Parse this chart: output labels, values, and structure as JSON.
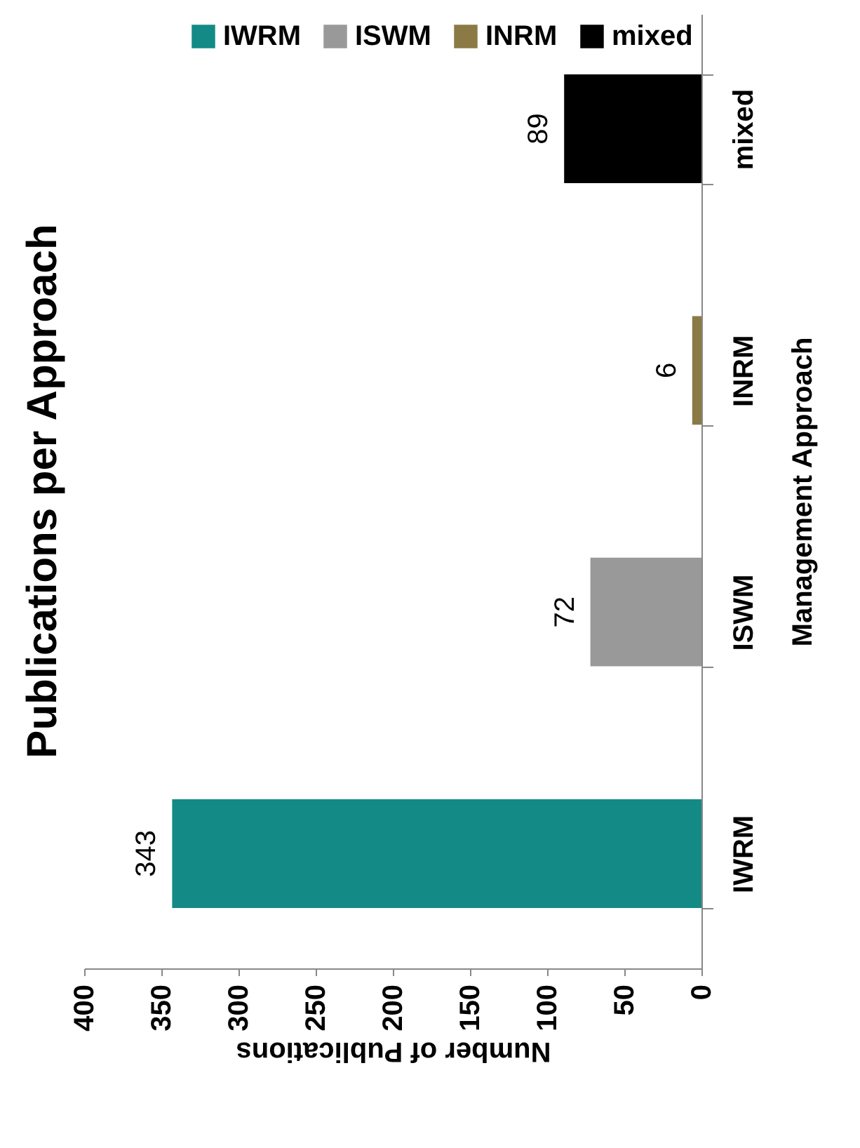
{
  "chart_data": {
    "type": "bar",
    "orientation": "horizontal",
    "stacked": true,
    "title": "Publications per Approach",
    "xlabel": "Number of Publications",
    "ylabel": "Management Approach",
    "categories": [
      "mixed",
      "INRM",
      "ISWM",
      "IWRM"
    ],
    "series": [
      {
        "name": "IWRM",
        "color": "#138a85",
        "values": [
          null,
          null,
          null,
          343
        ]
      },
      {
        "name": "ISWM",
        "color": "#999999",
        "values": [
          null,
          null,
          72,
          null
        ]
      },
      {
        "name": "INRM",
        "color": "#8b7a45",
        "values": [
          null,
          6,
          null,
          null
        ]
      },
      {
        "name": "mixed",
        "color": "#000000",
        "values": [
          89,
          null,
          null,
          null
        ]
      }
    ],
    "xlim": [
      400,
      0
    ],
    "xticks": [
      0,
      50,
      100,
      150,
      200,
      250,
      300,
      350,
      400
    ],
    "data_labels": true,
    "legend": "top right"
  }
}
